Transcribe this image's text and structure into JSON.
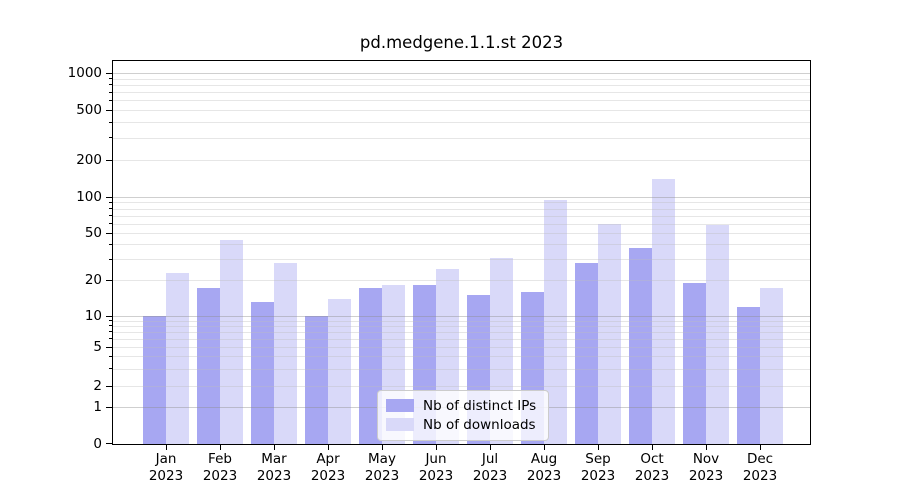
{
  "title": "pd.medgene.1.1.st 2023",
  "chart_data": {
    "type": "bar",
    "title": "pd.medgene.1.1.st 2023",
    "categories": [
      "Jan",
      "Feb",
      "Mar",
      "Apr",
      "May",
      "Jun",
      "Jul",
      "Aug",
      "Sep",
      "Oct",
      "Nov",
      "Dec"
    ],
    "x_year_label": "2023",
    "series": [
      {
        "name": "Nb of distinct IPs",
        "color": "#a7a7f2",
        "values": [
          10,
          17,
          13,
          10,
          17,
          18,
          15,
          16,
          28,
          37,
          19,
          12
        ]
      },
      {
        "name": "Nb of downloads",
        "color": "#d9d9f9",
        "values": [
          23,
          44,
          28,
          14,
          18,
          25,
          31,
          95,
          60,
          140,
          58,
          17
        ]
      }
    ],
    "y_axis": {
      "scale": "log-like with 0 baseline",
      "tick_values": [
        1000,
        500,
        200,
        100,
        50,
        20,
        10,
        5,
        2,
        1,
        0
      ],
      "tick_labels": [
        "1000",
        "500",
        "200",
        "100",
        "50",
        "20",
        "10",
        "5",
        "2",
        "1",
        "0"
      ]
    },
    "ylim": [
      0,
      1250
    ],
    "grid": "horizontal major (1,10,100,1000) + log minors, drawn over bars",
    "legend_position": "lower center"
  }
}
